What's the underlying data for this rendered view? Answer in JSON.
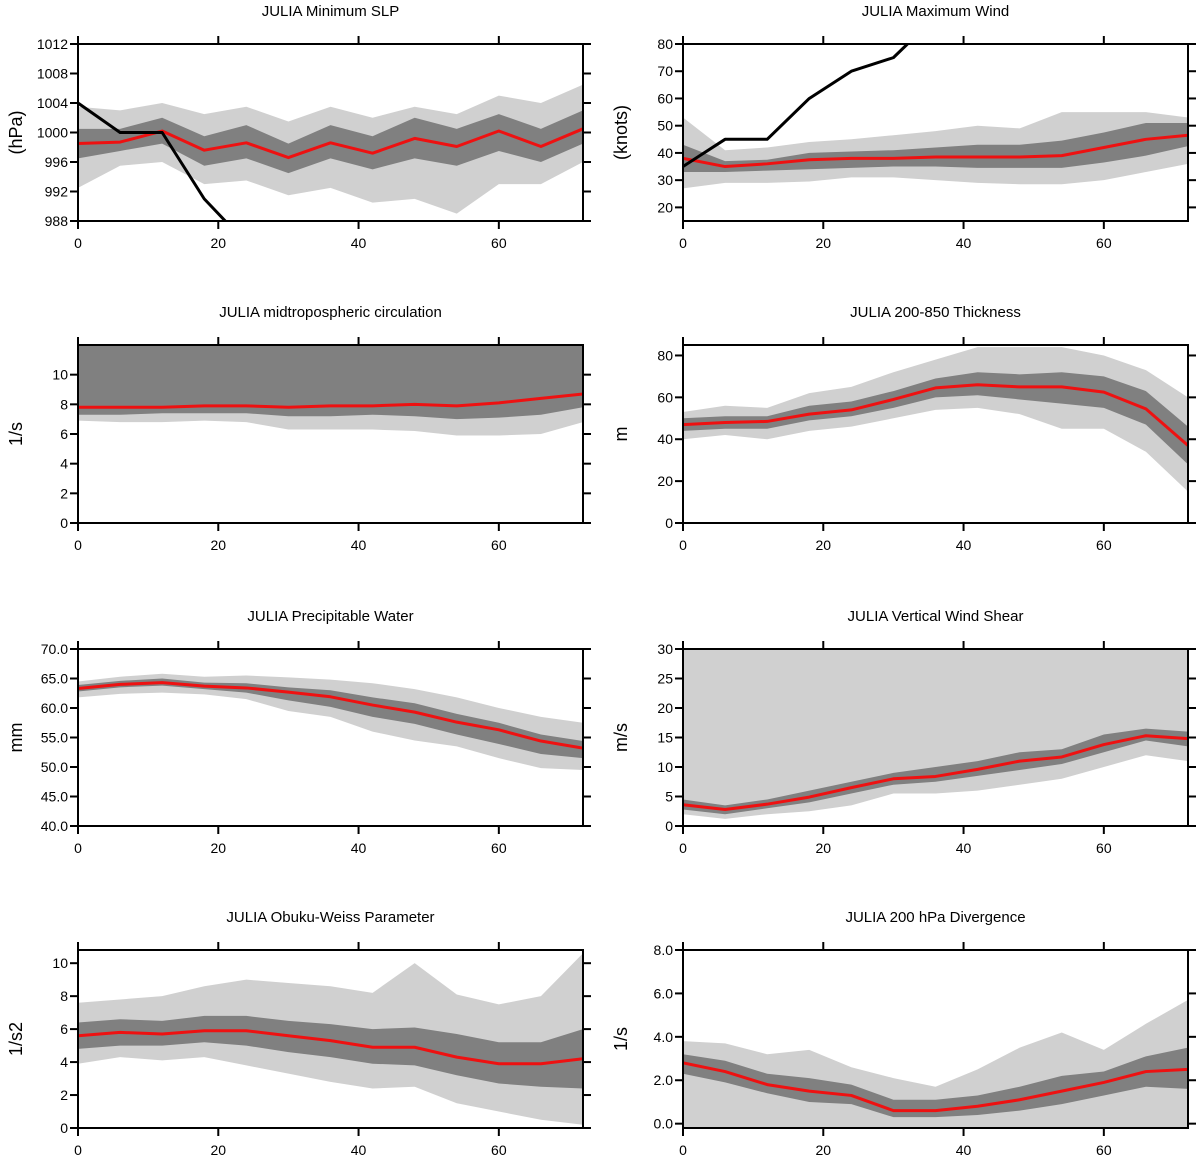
{
  "colors": {
    "outer_band": "#d0d0d0",
    "inner_band": "#808080",
    "mean_line": "#ee1111",
    "observed_line": "#000000",
    "axis": "#000000"
  },
  "chart_data": [
    {
      "type": "line",
      "title": "JULIA Minimum SLP",
      "xlabel": "",
      "ylabel": "(hPa)",
      "xlim": [
        0,
        72
      ],
      "ylim": [
        988,
        1012
      ],
      "xticks": [
        0,
        20,
        40,
        60
      ],
      "yticks": [
        988,
        992,
        996,
        1000,
        1004,
        1008,
        1012
      ],
      "ytick_labels": [
        "988",
        "992",
        "996",
        "1000",
        "1004",
        "1008",
        "1012"
      ],
      "x": [
        0,
        6,
        12,
        18,
        24,
        30,
        36,
        42,
        48,
        54,
        60,
        66,
        72
      ],
      "series": [
        {
          "role": "outer_band",
          "lower": [
            992.5,
            995.5,
            996,
            993,
            993.5,
            991.5,
            992.5,
            990.5,
            991,
            989,
            993,
            993,
            996
          ],
          "upper": [
            1003.5,
            1003,
            1004,
            1002.5,
            1003.5,
            1001.5,
            1003.5,
            1002,
            1003.5,
            1002.5,
            1005,
            1004,
            1006.5
          ]
        },
        {
          "role": "inner_band",
          "lower": [
            996.5,
            997.5,
            998.5,
            995.5,
            996.5,
            994.5,
            996.5,
            995,
            996.5,
            995.5,
            997.5,
            996,
            998.5
          ],
          "upper": [
            1000.5,
            1000.5,
            1002,
            999.5,
            1001,
            998.5,
            1001,
            999.5,
            1002,
            1000.5,
            1002.5,
            1000.5,
            1003
          ]
        },
        {
          "role": "mean",
          "values": [
            998.5,
            998.7,
            1000.2,
            997.6,
            998.6,
            996.6,
            998.6,
            997.2,
            999.2,
            998.1,
            1000.2,
            998.1,
            1000.5
          ]
        },
        {
          "role": "observed",
          "x": [
            0,
            6,
            12,
            18,
            21
          ],
          "values": [
            1004,
            1000,
            1000,
            991,
            988
          ]
        }
      ]
    },
    {
      "type": "line",
      "title": "JULIA Maximum Wind",
      "xlabel": "",
      "ylabel": "(knots)",
      "xlim": [
        0,
        72
      ],
      "ylim": [
        15,
        80
      ],
      "xticks": [
        0,
        20,
        40,
        60
      ],
      "yticks": [
        20,
        30,
        40,
        50,
        60,
        70,
        80
      ],
      "ytick_labels": [
        "20",
        "30",
        "40",
        "50",
        "60",
        "70",
        "80"
      ],
      "x": [
        0,
        6,
        12,
        18,
        24,
        30,
        36,
        42,
        48,
        54,
        60,
        66,
        72
      ],
      "series": [
        {
          "role": "outer_band",
          "lower": [
            27,
            29,
            29,
            29.5,
            31,
            31,
            30,
            29,
            28.5,
            28.5,
            30,
            33,
            36
          ],
          "upper": [
            53,
            41,
            42,
            44,
            45,
            46.5,
            48,
            50,
            49,
            55,
            55,
            55,
            53
          ]
        },
        {
          "role": "inner_band",
          "lower": [
            33,
            33,
            33.5,
            34,
            34.5,
            35,
            35,
            34.5,
            34.5,
            34.5,
            36.5,
            39,
            42.5
          ],
          "upper": [
            43,
            37,
            37.5,
            40,
            40.5,
            41,
            42,
            43,
            43,
            44.5,
            47.5,
            51,
            51
          ]
        },
        {
          "role": "mean",
          "values": [
            38,
            35,
            36,
            37.5,
            38,
            38,
            38.5,
            38.5,
            38.5,
            39,
            42,
            45,
            46.5
          ]
        },
        {
          "role": "observed",
          "x": [
            0,
            6,
            12,
            18,
            24,
            30,
            32
          ],
          "values": [
            35,
            45,
            45,
            60,
            70,
            75,
            80
          ]
        }
      ]
    },
    {
      "type": "line",
      "title": "JULIA midtropospheric circulation",
      "xlabel": "",
      "ylabel": "1/s",
      "xlim": [
        0,
        72
      ],
      "ylim": [
        0,
        12
      ],
      "xticks": [
        0,
        20,
        40,
        60
      ],
      "yticks": [
        0,
        2,
        4,
        6,
        8,
        10
      ],
      "ytick_labels": [
        "0",
        "2",
        "4",
        "6",
        "8",
        "10"
      ],
      "x": [
        0,
        6,
        12,
        18,
        24,
        30,
        36,
        42,
        48,
        54,
        60,
        66,
        72
      ],
      "series": [
        {
          "role": "outer_band",
          "lower": [
            6.9,
            6.8,
            6.8,
            6.9,
            6.8,
            6.3,
            6.3,
            6.3,
            6.2,
            5.9,
            5.9,
            6.0,
            6.8
          ],
          "upper": [
            9.0,
            8.9,
            9.1,
            9.4,
            9.6,
            9.6,
            9.8,
            10.4,
            11.1,
            11.0,
            11.0,
            11.5,
            11.6
          ]
        },
        {
          "role": "inner_band",
          "lower": [
            7.3,
            7.3,
            7.4,
            7.4,
            7.4,
            7.2,
            7.2,
            7.3,
            7.2,
            7.0,
            7.1,
            7.3,
            7.8
          ]
        },
        {
          "role": "mean",
          "values": [
            7.8,
            7.8,
            7.8,
            7.9,
            7.9,
            7.8,
            7.9,
            7.9,
            8.0,
            7.9,
            8.1,
            8.4,
            8.7
          ]
        }
      ]
    },
    {
      "type": "line",
      "title": "JULIA 200-850 Thickness",
      "xlabel": "",
      "ylabel": "m",
      "xlim": [
        0,
        72
      ],
      "ylim": [
        0,
        85
      ],
      "xticks": [
        0,
        20,
        40,
        60
      ],
      "yticks": [
        0,
        20,
        40,
        60,
        80
      ],
      "ytick_labels": [
        "0",
        "20",
        "40",
        "60",
        "80"
      ],
      "x": [
        0,
        6,
        12,
        18,
        24,
        30,
        36,
        42,
        48,
        54,
        60,
        66,
        72
      ],
      "series": [
        {
          "role": "outer_band",
          "lower": [
            40,
            42,
            40,
            44,
            46,
            50,
            54,
            55,
            52,
            45,
            45,
            34,
            15
          ],
          "upper": [
            53,
            56,
            55,
            62,
            65,
            72,
            78,
            84,
            84,
            84,
            80,
            73,
            60
          ]
        },
        {
          "role": "inner_band",
          "lower": [
            44,
            45,
            45,
            49,
            51,
            55,
            60,
            61,
            59,
            57,
            55,
            47,
            28
          ],
          "upper": [
            50,
            51,
            51,
            56,
            58,
            63,
            69,
            72,
            71,
            72,
            70,
            63,
            46
          ]
        },
        {
          "role": "mean",
          "values": [
            47,
            48,
            48.5,
            52,
            54,
            59,
            64.5,
            66,
            65,
            65,
            62.5,
            54.5,
            37
          ]
        }
      ]
    },
    {
      "type": "line",
      "title": "JULIA Precipitable Water",
      "xlabel": "",
      "ylabel": "mm",
      "xlim": [
        0,
        72
      ],
      "ylim": [
        40,
        70
      ],
      "xticks": [
        0,
        20,
        40,
        60
      ],
      "yticks": [
        40,
        45,
        50,
        55,
        60,
        65,
        70
      ],
      "ytick_labels": [
        "40.0",
        "45.0",
        "50.0",
        "55.0",
        "60.0",
        "65.0",
        "70.0"
      ],
      "x": [
        0,
        6,
        12,
        18,
        24,
        30,
        36,
        42,
        48,
        54,
        60,
        66,
        72
      ],
      "series": [
        {
          "role": "outer_band",
          "lower": [
            61.8,
            62.4,
            62.6,
            62.3,
            61.5,
            59.5,
            58.5,
            56,
            54.5,
            53.5,
            51.5,
            49.8,
            49.5
          ],
          "upper": [
            64.5,
            65.3,
            65.8,
            65.3,
            65.5,
            65.2,
            64.8,
            64.2,
            63.2,
            61.8,
            60,
            58.5,
            57.5
          ]
        },
        {
          "role": "inner_band",
          "lower": [
            62.8,
            63.5,
            63.8,
            63.2,
            62.6,
            61.3,
            60.2,
            58.5,
            57.3,
            55.5,
            53.9,
            52.2,
            51.5
          ],
          "upper": [
            63.9,
            64.6,
            65.0,
            64.3,
            64.2,
            63.5,
            63.0,
            61.8,
            60.8,
            59,
            57.5,
            55.5,
            54.4
          ]
        },
        {
          "role": "mean",
          "values": [
            63.3,
            64.0,
            64.3,
            63.7,
            63.4,
            62.7,
            61.9,
            60.5,
            59.3,
            57.6,
            56.3,
            54.4,
            53.2
          ]
        }
      ]
    },
    {
      "type": "line",
      "title": "JULIA Vertical Wind Shear",
      "xlabel": "",
      "ylabel": "m/s",
      "xlim": [
        0,
        72
      ],
      "ylim": [
        0,
        30
      ],
      "xticks": [
        0,
        20,
        40,
        60
      ],
      "yticks": [
        0,
        5,
        10,
        15,
        20,
        25,
        30
      ],
      "ytick_labels": [
        "0",
        "5",
        "10",
        "15",
        "20",
        "25",
        "30"
      ],
      "x": [
        0,
        6,
        12,
        18,
        24,
        30,
        36,
        42,
        48,
        54,
        60,
        66,
        72
      ],
      "series": [
        {
          "role": "outer_band",
          "lower": [
            2,
            1.2,
            2,
            2.5,
            3.5,
            5.5,
            5.5,
            6,
            7,
            8,
            10,
            12,
            11
          ]
        },
        {
          "role": "inner_band",
          "lower": [
            2.8,
            2,
            3,
            4,
            5.5,
            7,
            7.5,
            8.5,
            9.5,
            10.5,
            12.5,
            14.5,
            13.5
          ],
          "upper": [
            4.5,
            3.5,
            4.5,
            6,
            7.5,
            9,
            10,
            11,
            12.5,
            13,
            15.5,
            16.5,
            16
          ]
        },
        {
          "role": "mean",
          "values": [
            3.6,
            2.8,
            3.7,
            4.9,
            6.5,
            8,
            8.4,
            9.6,
            11,
            11.7,
            13.8,
            15.3,
            14.8
          ]
        }
      ]
    },
    {
      "type": "line",
      "title": "JULIA Obuku-Weiss Parameter",
      "xlabel": "",
      "ylabel": "1/s2",
      "xlim": [
        0,
        72
      ],
      "ylim": [
        0,
        10.8
      ],
      "xticks": [
        0,
        20,
        40,
        60
      ],
      "yticks": [
        0,
        2,
        4,
        6,
        8,
        10
      ],
      "ytick_labels": [
        "0",
        "2",
        "4",
        "6",
        "8",
        "10"
      ],
      "x": [
        0,
        6,
        12,
        18,
        24,
        30,
        36,
        42,
        48,
        54,
        60,
        66,
        72
      ],
      "series": [
        {
          "role": "outer_band",
          "lower": [
            3.9,
            4.3,
            4.1,
            4.3,
            3.8,
            3.3,
            2.8,
            2.4,
            2.5,
            1.5,
            1.0,
            0.5,
            0.2
          ],
          "upper": [
            7.6,
            7.8,
            8.0,
            8.6,
            9.0,
            8.8,
            8.6,
            8.2,
            10.0,
            8.1,
            7.5,
            8.0,
            10.6
          ]
        },
        {
          "role": "inner_band",
          "lower": [
            4.8,
            5.0,
            5.0,
            5.2,
            5.0,
            4.6,
            4.3,
            3.9,
            3.8,
            3.2,
            2.7,
            2.5,
            2.4
          ],
          "upper": [
            6.4,
            6.6,
            6.5,
            6.8,
            6.8,
            6.5,
            6.3,
            6.0,
            6.1,
            5.7,
            5.2,
            5.2,
            6.0
          ]
        },
        {
          "role": "mean",
          "values": [
            5.6,
            5.8,
            5.7,
            5.9,
            5.9,
            5.6,
            5.3,
            4.9,
            4.9,
            4.3,
            3.9,
            3.9,
            4.2
          ]
        }
      ]
    },
    {
      "type": "line",
      "title": "JULIA 200 hPa Divergence",
      "xlabel": "",
      "ylabel": "1/s",
      "xlim": [
        0,
        72
      ],
      "ylim": [
        -0.2,
        8.0
      ],
      "xticks": [
        0,
        20,
        40,
        60
      ],
      "yticks": [
        0,
        2,
        4,
        6,
        8
      ],
      "ytick_labels": [
        "0.0",
        "2.0",
        "4.0",
        "6.0",
        "8.0"
      ],
      "x": [
        0,
        6,
        12,
        18,
        24,
        30,
        36,
        42,
        48,
        54,
        60,
        66,
        72
      ],
      "series": [
        {
          "role": "outer_band",
          "upper": [
            3.8,
            3.7,
            3.2,
            3.4,
            2.6,
            2.1,
            1.7,
            2.5,
            3.5,
            4.2,
            3.4,
            4.6,
            5.7
          ]
        },
        {
          "role": "inner_band",
          "lower": [
            2.3,
            1.9,
            1.4,
            1.0,
            0.9,
            0.3,
            0.3,
            0.4,
            0.6,
            0.9,
            1.3,
            1.7,
            1.6
          ],
          "upper": [
            3.2,
            2.9,
            2.3,
            2.1,
            1.8,
            1.1,
            1.1,
            1.3,
            1.7,
            2.2,
            2.4,
            3.1,
            3.5
          ]
        },
        {
          "role": "mean",
          "values": [
            2.8,
            2.4,
            1.8,
            1.5,
            1.3,
            0.6,
            0.6,
            0.8,
            1.1,
            1.5,
            1.9,
            2.4,
            2.5
          ]
        }
      ]
    }
  ]
}
